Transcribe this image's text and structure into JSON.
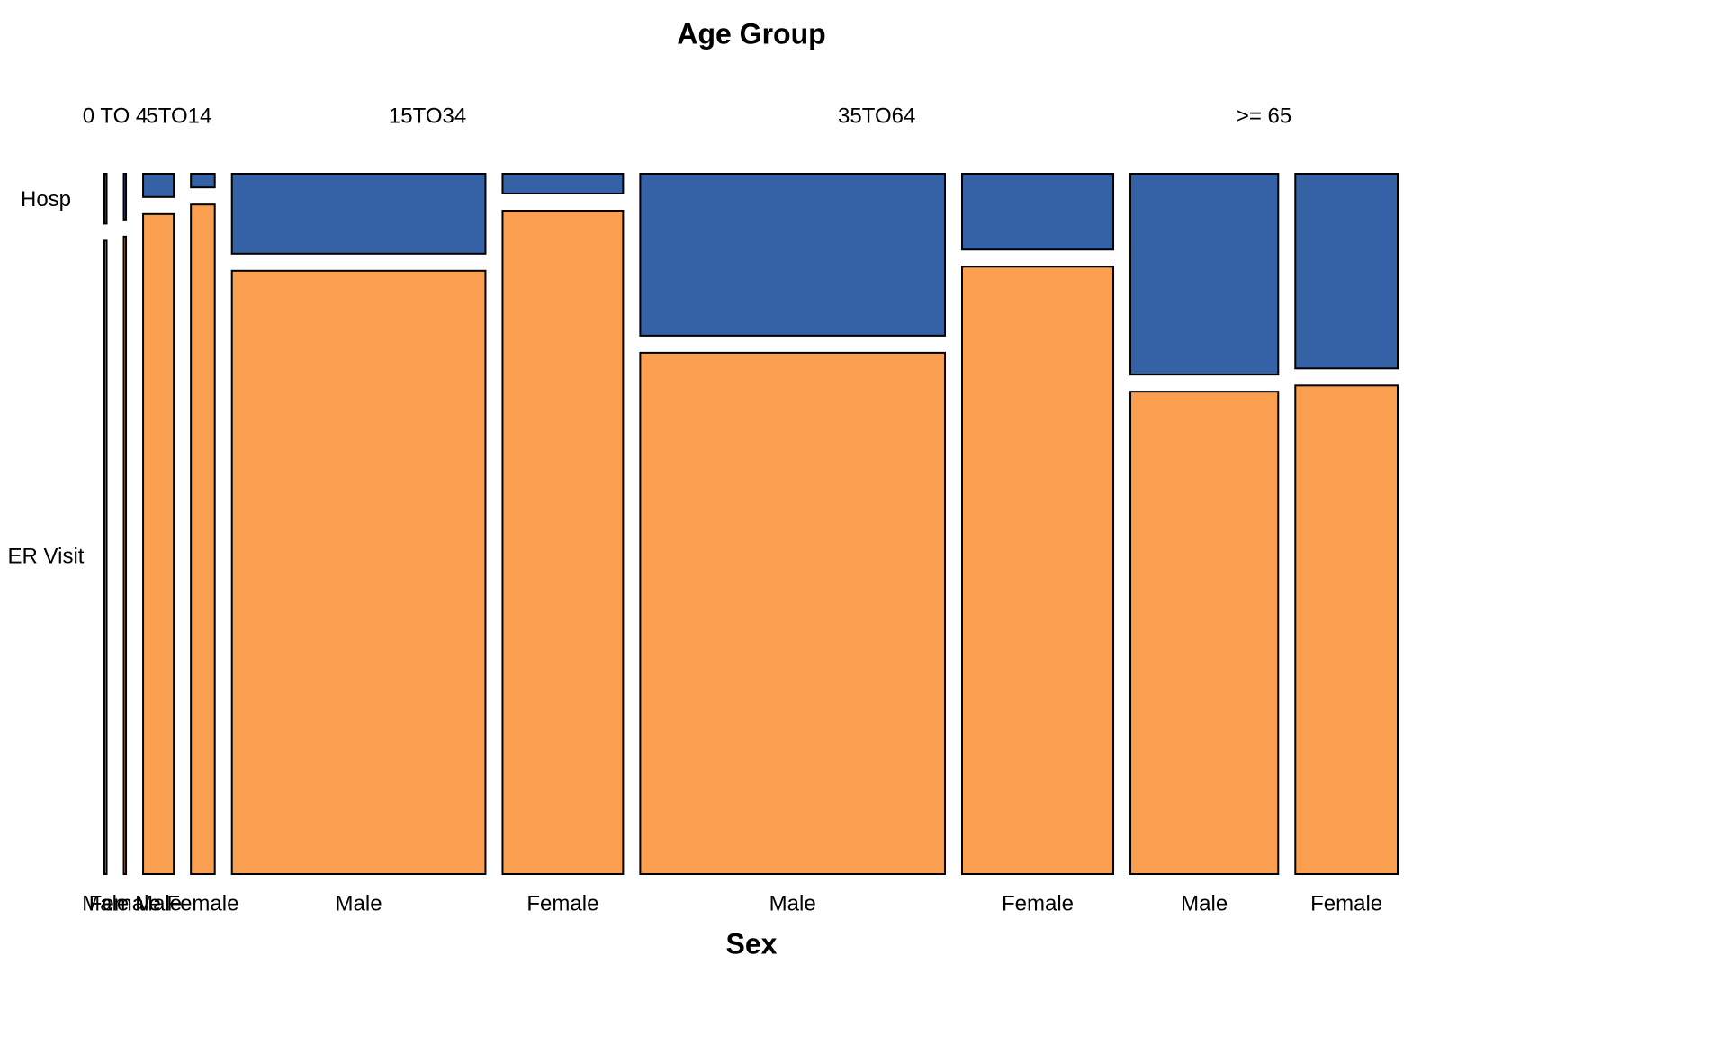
{
  "chart_data": {
    "type": "mosaic",
    "title": "Age Group",
    "xlabel": "Sex",
    "series": [
      {
        "name": "Hosp",
        "color": "#3562a6"
      },
      {
        "name": "ER Visit",
        "color": "#fa9e50"
      }
    ],
    "groups": [
      {
        "name": "0 TO 4",
        "cells": [
          {
            "label": "Male",
            "share": 0.2,
            "values": [
              7.3,
              92.7
            ]
          },
          {
            "label": "Female",
            "share": 0.2,
            "values": [
              6.7,
              93.3
            ]
          }
        ]
      },
      {
        "name": "5TO14",
        "cells": [
          {
            "label": "Male",
            "share": 2.7,
            "values": [
              3.4,
              96.6
            ]
          },
          {
            "label": "Female",
            "share": 2.1,
            "values": [
              2.0,
              98.0
            ]
          }
        ]
      },
      {
        "name": "15TO34",
        "cells": [
          {
            "label": "Male",
            "share": 22.3,
            "values": [
              11.7,
              88.3
            ]
          },
          {
            "label": "Female",
            "share": 10.6,
            "values": [
              2.9,
              97.1
            ]
          }
        ]
      },
      {
        "name": "35TO64",
        "cells": [
          {
            "label": "Male",
            "share": 26.8,
            "values": [
              23.7,
              76.3
            ]
          },
          {
            "label": "Female",
            "share": 13.3,
            "values": [
              11.1,
              88.9
            ]
          }
        ]
      },
      {
        "name": ">= 65",
        "cells": [
          {
            "label": "Male",
            "share": 13.0,
            "values": [
              29.4,
              70.6
            ]
          },
          {
            "label": "Female",
            "share": 9.0,
            "values": [
              28.5,
              71.5
            ]
          }
        ]
      }
    ]
  }
}
